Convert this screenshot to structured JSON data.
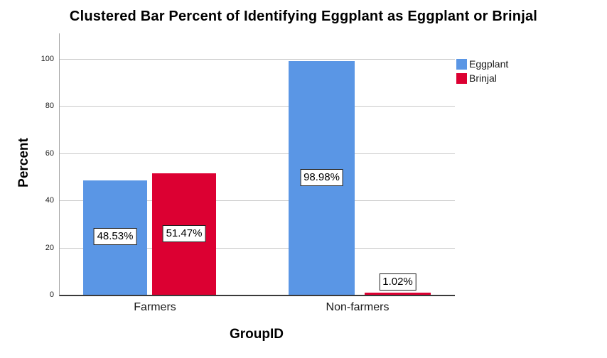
{
  "chart_data": {
    "type": "bar",
    "title": "Clustered Bar Percent of Identifying Eggplant as Eggplant or Brinjal",
    "xlabel": "GroupID",
    "ylabel": "Percent",
    "categories": [
      "Farmers",
      "Non-farmers"
    ],
    "series": [
      {
        "name": "Eggplant",
        "color": "#5A96E5",
        "values": [
          48.53,
          98.98
        ],
        "labels": [
          "48.53%",
          "98.98%"
        ]
      },
      {
        "name": "Brinjal",
        "color": "#DC0032",
        "values": [
          51.47,
          1.02
        ],
        "labels": [
          "51.47%",
          "1.02%"
        ]
      }
    ],
    "ylim": [
      0,
      100
    ],
    "yticks": [
      0,
      20,
      40,
      60,
      80,
      100
    ],
    "grid": true,
    "legend_position": "top-right",
    "colors": {
      "gridline": "#c9c9c9",
      "y_axis_line": "#a6a6a6",
      "baseline": "#3a3a3a",
      "background": "#ffffff",
      "text": "#000000"
    }
  }
}
